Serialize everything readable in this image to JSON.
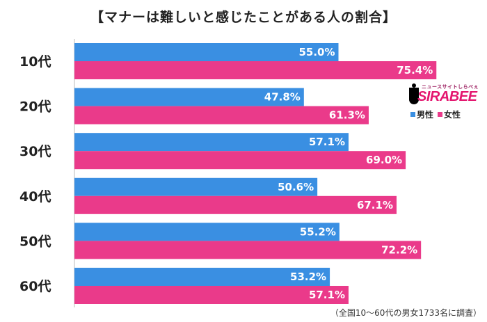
{
  "title": "【マナーは難しいと感じたことがある人の割合】",
  "note": "（全国10〜60代の男女1733名に調査）",
  "logo": {
    "small_text": "ニュースサイトしらべぇ",
    "brand": "SIRABEE"
  },
  "legend": [
    {
      "label": "男性",
      "color": "#3a8fe2"
    },
    {
      "label": "女性",
      "color": "#ea3a8a"
    }
  ],
  "chart_data": {
    "type": "bar",
    "orientation": "horizontal",
    "categories": [
      "10代",
      "20代",
      "30代",
      "40代",
      "50代",
      "60代"
    ],
    "series": [
      {
        "name": "男性",
        "color": "#3a8fe2",
        "values": [
          55.0,
          47.8,
          57.1,
          50.6,
          55.2,
          53.2
        ]
      },
      {
        "name": "女性",
        "color": "#ea3a8a",
        "values": [
          75.4,
          61.3,
          69.0,
          67.1,
          72.2,
          57.1
        ]
      }
    ],
    "value_suffix": "%",
    "xlim": [
      0,
      100
    ],
    "grid": false,
    "legend_position": "right"
  }
}
